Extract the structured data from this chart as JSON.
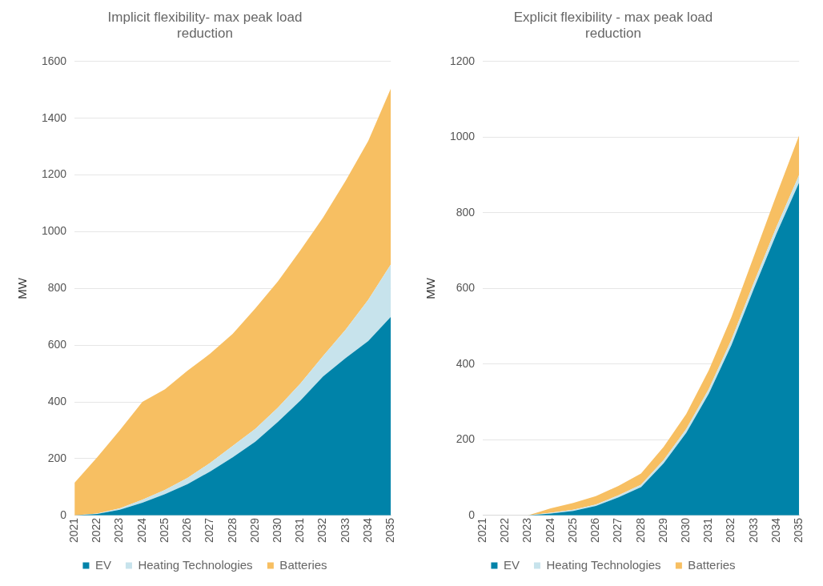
{
  "chart_data": [
    {
      "type": "area",
      "title": "Implicit flexibility- max peak load reduction",
      "ylabel": "MW",
      "categories": [
        "2021",
        "2022",
        "2023",
        "2024",
        "2025",
        "2026",
        "2027",
        "2028",
        "2029",
        "2030",
        "2031",
        "2032",
        "2033",
        "2034",
        "2035"
      ],
      "stacked": true,
      "ylim": [
        0,
        1600
      ],
      "yticks": [
        0,
        200,
        400,
        600,
        800,
        1000,
        1200,
        1400,
        1600
      ],
      "grid": "y",
      "legend": "bottom",
      "series": [
        {
          "name": "EV",
          "color": "#0083a9",
          "values": [
            0,
            5,
            20,
            45,
            75,
            110,
            155,
            205,
            260,
            330,
            405,
            490,
            555,
            615,
            700
          ]
        },
        {
          "name": "Heating Technologies",
          "color": "#c7e3ec",
          "values": [
            0,
            2,
            5,
            10,
            15,
            22,
            30,
            40,
            45,
            50,
            60,
            72,
            100,
            145,
            185
          ]
        },
        {
          "name": "Batteries",
          "color": "#f7bf62",
          "values": [
            115,
            198,
            275,
            345,
            355,
            378,
            385,
            395,
            425,
            445,
            470,
            488,
            525,
            560,
            620
          ]
        }
      ]
    },
    {
      "type": "area",
      "title": "Explicit flexibility - max peak load reduction",
      "ylabel": "MW",
      "categories": [
        "2021",
        "2022",
        "2023",
        "2024",
        "2025",
        "2026",
        "2027",
        "2028",
        "2029",
        "2030",
        "2031",
        "2032",
        "2033",
        "2034",
        "2035"
      ],
      "stacked": true,
      "ylim": [
        0,
        1200
      ],
      "yticks": [
        0,
        200,
        400,
        600,
        800,
        1000,
        1200
      ],
      "grid": "y",
      "legend": "bottom",
      "series": [
        {
          "name": "EV",
          "color": "#0083a9",
          "values": [
            0,
            0,
            0,
            5,
            12,
            25,
            48,
            75,
            138,
            218,
            322,
            450,
            600,
            745,
            880
          ]
        },
        {
          "name": "Heating Technologies",
          "color": "#c7e3ec",
          "values": [
            0,
            0,
            0,
            2,
            3,
            4,
            5,
            6,
            8,
            10,
            12,
            14,
            16,
            18,
            20
          ]
        },
        {
          "name": "Batteries",
          "color": "#f7bf62",
          "values": [
            0,
            0,
            0,
            12,
            18,
            22,
            25,
            30,
            35,
            40,
            50,
            60,
            70,
            85,
            105
          ]
        }
      ]
    }
  ]
}
